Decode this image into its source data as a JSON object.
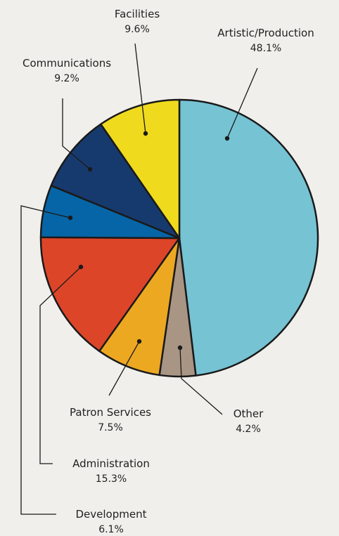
{
  "chart_data": {
    "type": "pie",
    "title": "",
    "start_angle_deg": 0,
    "direction": "clockwise",
    "slices": [
      {
        "name": "Artistic/Production",
        "value": 48.1,
        "value_label": "48.1%",
        "color": "#76c3d4"
      },
      {
        "name": "Other",
        "value": 4.2,
        "value_label": "4.2%",
        "color": "#a89584"
      },
      {
        "name": "Patron Services",
        "value": 7.5,
        "value_label": "7.5%",
        "color": "#eda822"
      },
      {
        "name": "Administration",
        "value": 15.3,
        "value_label": "15.3%",
        "color": "#dd4529"
      },
      {
        "name": "Development",
        "value": 6.1,
        "value_label": "6.1%",
        "color": "#0665a6"
      },
      {
        "name": "Communications",
        "value": 9.2,
        "value_label": "9.2%",
        "color": "#173a6e"
      },
      {
        "name": "Facilities",
        "value": 9.6,
        "value_label": "9.6%",
        "color": "#efda1e"
      }
    ]
  }
}
